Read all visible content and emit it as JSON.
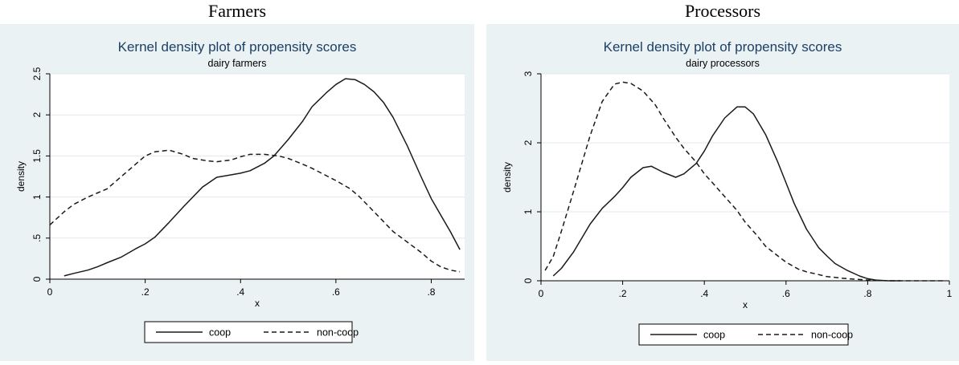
{
  "panels": {
    "farmers": "Farmers",
    "processors": "Processors"
  },
  "chart_data": [
    {
      "type": "line",
      "title": "Kernel density plot of propensity scores",
      "subtitle": "dairy farmers",
      "xlabel": "x",
      "ylabel": "density",
      "xlim": [
        0,
        0.87
      ],
      "ylim": [
        0,
        2.5
      ],
      "xticks": [
        0,
        0.2,
        0.4,
        0.6,
        0.8
      ],
      "xtick_labels": [
        "0",
        ".2",
        ".4",
        ".6",
        ".8"
      ],
      "yticks": [
        0,
        0.5,
        1,
        1.5,
        2,
        2.5
      ],
      "ytick_labels": [
        "0",
        ".5",
        "1",
        "1.5",
        "2",
        "2.5"
      ],
      "grid": true,
      "legend_position": "bottom",
      "colors": {
        "background": "#eaf2f3",
        "plot": "#ffffff",
        "title": "#1e3f66",
        "line": "#1a1a1a",
        "grid": "#dfe8ea"
      },
      "series": [
        {
          "name": "coop",
          "style": "solid",
          "x": [
            0.03,
            0.05,
            0.08,
            0.1,
            0.12,
            0.15,
            0.18,
            0.2,
            0.22,
            0.25,
            0.28,
            0.3,
            0.32,
            0.35,
            0.37,
            0.4,
            0.42,
            0.45,
            0.47,
            0.5,
            0.53,
            0.55,
            0.58,
            0.6,
            0.62,
            0.64,
            0.66,
            0.68,
            0.7,
            0.72,
            0.75,
            0.78,
            0.8,
            0.82,
            0.84,
            0.86
          ],
          "y": [
            0.04,
            0.07,
            0.11,
            0.15,
            0.2,
            0.27,
            0.37,
            0.43,
            0.51,
            0.69,
            0.88,
            1.0,
            1.12,
            1.24,
            1.26,
            1.29,
            1.32,
            1.41,
            1.5,
            1.7,
            1.92,
            2.1,
            2.27,
            2.37,
            2.44,
            2.43,
            2.37,
            2.28,
            2.15,
            1.97,
            1.62,
            1.23,
            0.98,
            0.78,
            0.58,
            0.36
          ]
        },
        {
          "name": "non-coop",
          "style": "dashed",
          "x": [
            0.0,
            0.03,
            0.05,
            0.08,
            0.1,
            0.12,
            0.15,
            0.18,
            0.2,
            0.22,
            0.25,
            0.28,
            0.3,
            0.33,
            0.35,
            0.38,
            0.4,
            0.42,
            0.45,
            0.48,
            0.5,
            0.53,
            0.55,
            0.58,
            0.6,
            0.63,
            0.65,
            0.68,
            0.7,
            0.72,
            0.75,
            0.78,
            0.8,
            0.82,
            0.84,
            0.86
          ],
          "y": [
            0.66,
            0.82,
            0.91,
            1.0,
            1.05,
            1.1,
            1.25,
            1.4,
            1.5,
            1.55,
            1.57,
            1.52,
            1.47,
            1.44,
            1.43,
            1.45,
            1.49,
            1.52,
            1.52,
            1.5,
            1.47,
            1.4,
            1.35,
            1.26,
            1.2,
            1.1,
            1.0,
            0.82,
            0.7,
            0.58,
            0.45,
            0.32,
            0.22,
            0.15,
            0.11,
            0.09
          ]
        }
      ]
    },
    {
      "type": "line",
      "title": "Kernel density plot of propensity scores",
      "subtitle": "dairy processors",
      "xlabel": "x",
      "ylabel": "density",
      "xlim": [
        0,
        1
      ],
      "ylim": [
        0,
        3
      ],
      "xticks": [
        0,
        0.2,
        0.4,
        0.6,
        0.8,
        1
      ],
      "xtick_labels": [
        "0",
        ".2",
        ".4",
        ".6",
        ".8",
        "1"
      ],
      "yticks": [
        0,
        1,
        2,
        3
      ],
      "ytick_labels": [
        "0",
        "1",
        "2",
        "3"
      ],
      "grid": true,
      "legend_position": "bottom",
      "colors": {
        "background": "#eaf2f3",
        "plot": "#ffffff",
        "title": "#1e3f66",
        "line": "#1a1a1a",
        "grid": "#dfe8ea"
      },
      "series": [
        {
          "name": "coop",
          "style": "solid",
          "x": [
            0.03,
            0.05,
            0.08,
            0.1,
            0.12,
            0.15,
            0.18,
            0.2,
            0.22,
            0.25,
            0.27,
            0.3,
            0.33,
            0.35,
            0.38,
            0.4,
            0.42,
            0.45,
            0.48,
            0.5,
            0.52,
            0.55,
            0.58,
            0.6,
            0.62,
            0.65,
            0.68,
            0.7,
            0.72,
            0.75,
            0.78,
            0.8,
            0.82,
            0.85,
            0.88
          ],
          "y": [
            0.07,
            0.18,
            0.42,
            0.62,
            0.82,
            1.05,
            1.22,
            1.35,
            1.5,
            1.64,
            1.66,
            1.57,
            1.5,
            1.55,
            1.7,
            1.88,
            2.1,
            2.36,
            2.52,
            2.52,
            2.42,
            2.12,
            1.72,
            1.42,
            1.12,
            0.75,
            0.48,
            0.36,
            0.25,
            0.15,
            0.07,
            0.03,
            0.01,
            0.0,
            0.0
          ]
        },
        {
          "name": "non-coop",
          "style": "dashed",
          "x": [
            0.01,
            0.03,
            0.05,
            0.08,
            0.1,
            0.12,
            0.15,
            0.18,
            0.2,
            0.22,
            0.25,
            0.28,
            0.3,
            0.33,
            0.35,
            0.38,
            0.4,
            0.42,
            0.45,
            0.48,
            0.5,
            0.53,
            0.55,
            0.58,
            0.6,
            0.63,
            0.65,
            0.68,
            0.7,
            0.75,
            0.8,
            0.85,
            0.9,
            0.95,
            0.99
          ],
          "y": [
            0.15,
            0.35,
            0.72,
            1.3,
            1.7,
            2.1,
            2.6,
            2.85,
            2.88,
            2.86,
            2.75,
            2.55,
            2.35,
            2.08,
            1.92,
            1.72,
            1.55,
            1.42,
            1.22,
            1.02,
            0.85,
            0.65,
            0.5,
            0.36,
            0.27,
            0.17,
            0.13,
            0.09,
            0.06,
            0.03,
            0.01,
            0.0,
            0.0,
            0.0,
            0.0
          ]
        }
      ]
    }
  ]
}
